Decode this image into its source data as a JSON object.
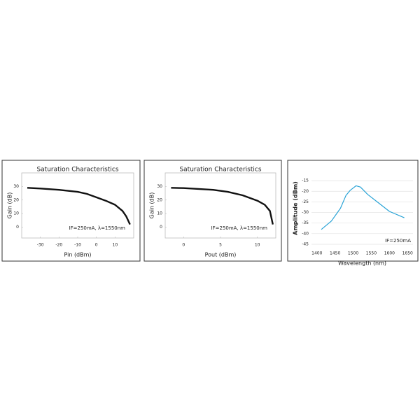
{
  "chart_data": [
    {
      "type": "line",
      "title": "Saturation Characteristics",
      "x_label": "Pin (dBm)",
      "y_label": "Gain (dB)",
      "annotation": "IF=250mA, λ=1550nm",
      "x": [
        -37,
        -30,
        -20,
        -10,
        -5,
        0,
        5,
        10,
        14,
        16,
        18
      ],
      "values": [
        29,
        28.5,
        27.5,
        26,
        24.5,
        22,
        19.5,
        16.5,
        12,
        8,
        2
      ],
      "color": "#111111",
      "xlim": [
        -40,
        20
      ],
      "ylim": [
        -8,
        40
      ],
      "xticks": [
        -30,
        -20,
        -10,
        0,
        10
      ],
      "yticks": [
        0,
        10,
        20,
        30
      ],
      "grid": false
    },
    {
      "type": "line",
      "title": "Saturation Characteristics",
      "x_label": "Pout (dBm)",
      "y_label": "Gain (dB)",
      "annotation": "IF=250mA, λ=1550nm",
      "x": [
        -1.7,
        0,
        2,
        4,
        6,
        8,
        10,
        11,
        11.7,
        12.1
      ],
      "values": [
        29,
        28.8,
        28.2,
        27.5,
        26,
        23.5,
        19.5,
        16.5,
        12,
        2
      ],
      "color": "#111111",
      "xlim": [
        -2.5,
        12.5
      ],
      "ylim": [
        -8,
        40
      ],
      "xticks": [
        0,
        5,
        10
      ],
      "yticks": [
        0,
        10,
        20,
        30
      ],
      "grid": false
    },
    {
      "type": "line",
      "x_label": "Wavelength (nm)",
      "y_label": "Amplitude (dBm)",
      "annotation": "IF=250mA",
      "x": [
        1412,
        1440,
        1465,
        1480,
        1492,
        1508,
        1520,
        1540,
        1570,
        1600,
        1641
      ],
      "values": [
        -38,
        -34,
        -28,
        -22,
        -19.5,
        -17.4,
        -18,
        -21.5,
        -25.5,
        -29.5,
        -32.5
      ],
      "color": "#29a3d6",
      "xlim": [
        1385,
        1665
      ],
      "ylim": [
        -46,
        -10
      ],
      "xticks": [
        1400,
        1450,
        1500,
        1550,
        1600,
        1650
      ],
      "yticks": [
        -15,
        -20,
        -25,
        -30,
        -35,
        -40,
        -45
      ],
      "grid": true
    }
  ]
}
